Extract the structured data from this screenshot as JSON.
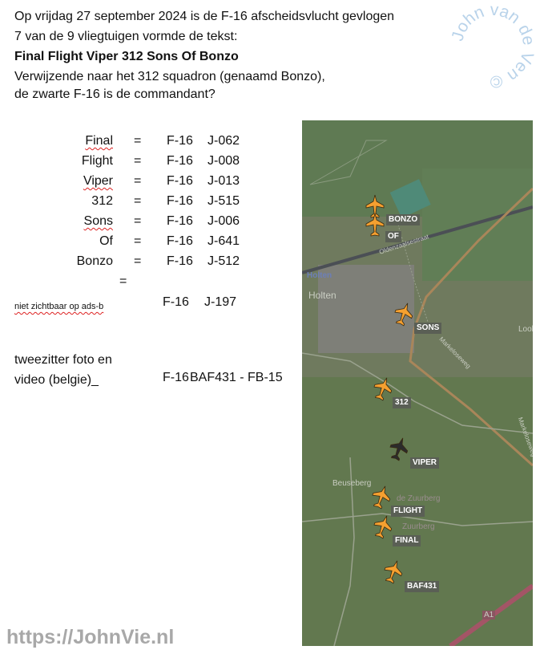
{
  "intro": {
    "line1": "Op vrijdag 27 september 2024 is de F-16 afscheidsvlucht gevlogen",
    "line2": "7 van de 9 vliegtuigen vormde de tekst:",
    "line3": "Final Flight Viper 312 Sons Of Bonzo",
    "line4": "Verwijzende naar het 312 squadron (genaamd Bonzo),",
    "line5": "de zwarte F-16 is de commandant?"
  },
  "watermark": "John van de Ven ©",
  "table": {
    "rows": [
      {
        "word": "Final",
        "eq": "=",
        "type": "F-16",
        "reg": "J-062"
      },
      {
        "word": "Flight",
        "eq": "=",
        "type": "F-16",
        "reg": "J-008"
      },
      {
        "word": "Viper",
        "eq": "=",
        "type": "F-16",
        "reg": "J-013"
      },
      {
        "word": "312",
        "eq": "=",
        "type": "F-16",
        "reg": "J-515"
      },
      {
        "word": "Sons",
        "eq": "=",
        "type": "F-16",
        "reg": "J-006"
      },
      {
        "word": "Of",
        "eq": "=",
        "type": "F-16",
        "reg": "J-641"
      },
      {
        "word": "Bonzo",
        "eq": "=",
        "type": "F-16",
        "reg": "J-512"
      }
    ],
    "extra_eq": "=",
    "hidden": {
      "label": "niet zichtbaar op ads-b",
      "type": "F-16",
      "reg": "J-197"
    },
    "twoseater": {
      "line1": "tweezitter foto en",
      "line2": "video (belgie)_",
      "type": "F-16",
      "reg": "BAF431 - FB-15"
    }
  },
  "map": {
    "places": [
      "Holten",
      "Holten",
      "Beuseberg",
      "de Zuurberg",
      "Zuurberg",
      "Markeloseweg",
      "Markeloseweg",
      "Oldenzaalsestraat",
      "Look",
      "A1"
    ],
    "aircraft": [
      {
        "label": "BONZO",
        "color": "#f5a030"
      },
      {
        "label": "OF",
        "color": "#f5a030"
      },
      {
        "label": "SONS",
        "color": "#f5a030"
      },
      {
        "label": "312",
        "color": "#f5a030"
      },
      {
        "label": "VIPER",
        "color": "#2b2b2b"
      },
      {
        "label": "FLIGHT",
        "color": "#f5a030"
      },
      {
        "label": "FINAL",
        "color": "#f5a030"
      },
      {
        "label": "BAF431",
        "color": "#f5a030"
      }
    ]
  },
  "footer": "https://JohnVie.nl"
}
